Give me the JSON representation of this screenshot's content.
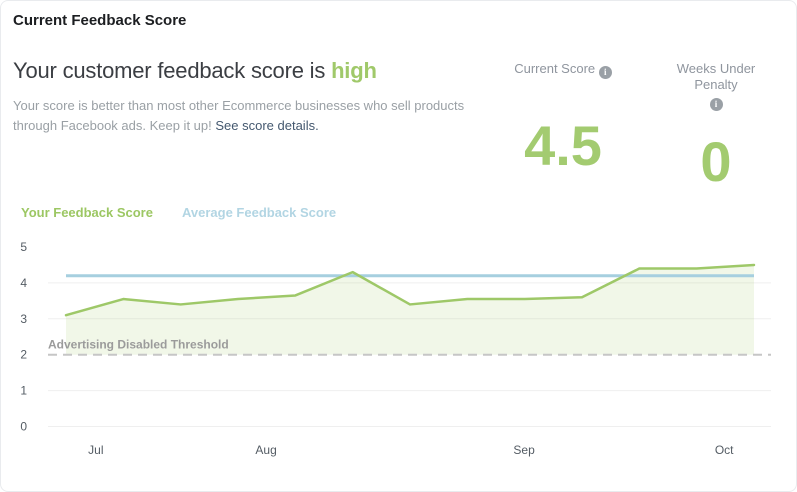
{
  "card": {
    "title": "Current Feedback Score",
    "headline": {
      "prefix": "Your customer feedback score is ",
      "status": "high"
    },
    "description": {
      "text": "Your score is better than most other Ecommerce businesses who sell products through Facebook ads. Keep it up! ",
      "link": "See score details."
    },
    "stats": [
      {
        "label": "Current Score",
        "value": "4.5"
      },
      {
        "label": "Weeks Under Penalty",
        "value": "0"
      }
    ],
    "icons": {
      "info": "i"
    }
  },
  "colors": {
    "status_green": "#a0c96a",
    "stat_value_green": "#a3cb70",
    "legend_green": "#9cc763",
    "legend_blue": "#b2d5e3",
    "link": "#44586f"
  },
  "chart_data": {
    "type": "line",
    "title": "",
    "xlabel": "",
    "ylabel": "",
    "ylim": [
      0,
      5
    ],
    "yticks": [
      0,
      1,
      2,
      3,
      4,
      5
    ],
    "grid": "horizontal",
    "legend_position": "top-left",
    "x_unit": "week",
    "series": [
      {
        "name": "Your Feedback Score",
        "color": "#9ec868",
        "fill": "rgba(158,200,104,0.15)",
        "values": [
          3.1,
          3.55,
          3.4,
          3.55,
          3.65,
          4.3,
          3.4,
          3.55,
          3.55,
          3.6,
          4.4,
          4.4,
          4.5
        ]
      },
      {
        "name": "Average Feedback Score",
        "color": "#a6cfdf",
        "constant": 4.2
      }
    ],
    "threshold": {
      "label": "Advertising Disabled Threshold",
      "value": 2,
      "color": "#c6c6c6",
      "label_color": "#9b9b9b"
    },
    "x_labels": [
      {
        "label": "Jul",
        "pos": 0.52
      },
      {
        "label": "Aug",
        "pos": 3.49
      },
      {
        "label": "Sep",
        "pos": 7.99
      },
      {
        "label": "Oct",
        "pos": 11.48
      }
    ],
    "tick_color": "#545c64",
    "grid_color": "#efefef"
  }
}
